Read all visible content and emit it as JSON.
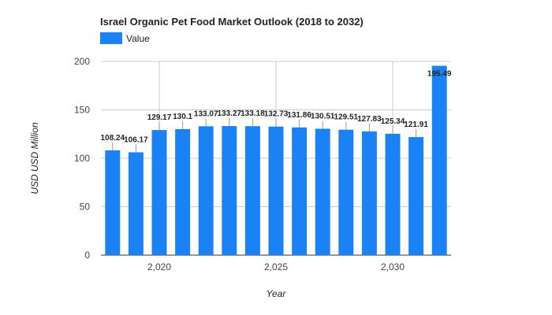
{
  "chart_data": {
    "type": "bar",
    "title": "Israel Organic Pet Food Market Outlook (2018 to 2032)",
    "xlabel": "Year",
    "ylabel": "USD USD Million",
    "legend": {
      "position": "top-left",
      "entries": [
        "Value"
      ]
    },
    "series": [
      {
        "name": "Value",
        "color": "#1a82f5",
        "x": [
          2018,
          2019,
          2020,
          2021,
          2022,
          2023,
          2024,
          2025,
          2026,
          2027,
          2028,
          2029,
          2030,
          2031,
          2032
        ],
        "values": [
          108.24,
          106.17,
          129.17,
          130.1,
          133.07,
          133.27,
          133.18,
          132.73,
          131.86,
          130.51,
          129.51,
          127.83,
          125.34,
          121.91,
          195.49
        ],
        "labels": [
          "108.24",
          "106.17",
          "129.17",
          "130.1",
          "133.07",
          "133.27",
          "133.18",
          "132.73",
          "131.86",
          "130.51",
          "129.51",
          "127.83",
          "125.34",
          "121.91",
          "195.49"
        ]
      }
    ],
    "xlim": [
      2017.5,
      2032.5
    ],
    "ylim": [
      0,
      200
    ],
    "y_ticks": [
      0,
      50,
      100,
      150,
      200
    ],
    "x_ticks": [
      2020,
      2025,
      2030
    ],
    "x_tick_labels": [
      "2,020",
      "2,025",
      "2,030"
    ],
    "grid": true
  }
}
